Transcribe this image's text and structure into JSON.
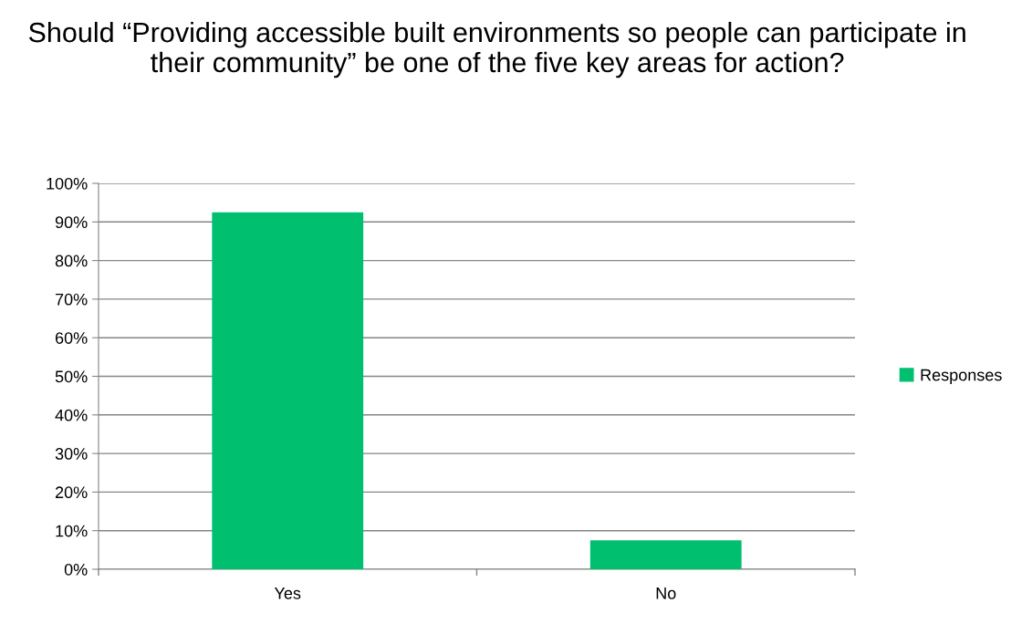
{
  "chart_data": {
    "type": "bar",
    "title": "Should “Providing accessible built environments so people can participate in their community” be one of the five key areas for action?",
    "categories": [
      "Yes",
      "No"
    ],
    "series": [
      {
        "name": "Responses",
        "color": "#00c06f",
        "values": [
          92.5,
          7.5
        ]
      }
    ],
    "ylim": [
      0,
      100
    ],
    "yticks": [
      {
        "value": 0,
        "label": "0%"
      },
      {
        "value": 10,
        "label": "10%"
      },
      {
        "value": 20,
        "label": "20%"
      },
      {
        "value": 30,
        "label": "30%"
      },
      {
        "value": 40,
        "label": "40%"
      },
      {
        "value": 50,
        "label": "50%"
      },
      {
        "value": 60,
        "label": "60%"
      },
      {
        "value": 70,
        "label": "70%"
      },
      {
        "value": 80,
        "label": "80%"
      },
      {
        "value": 90,
        "label": "90%"
      },
      {
        "value": 100,
        "label": "100%"
      }
    ],
    "grid": "y",
    "legend": "right"
  }
}
